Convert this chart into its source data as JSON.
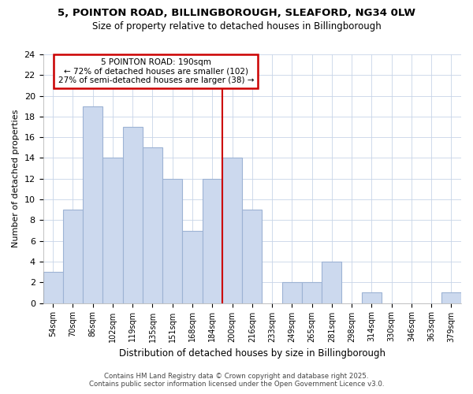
{
  "title1": "5, POINTON ROAD, BILLINGBOROUGH, SLEAFORD, NG34 0LW",
  "title2": "Size of property relative to detached houses in Billingborough",
  "xlabel": "Distribution of detached houses by size in Billingborough",
  "ylabel": "Number of detached properties",
  "categories": [
    "54sqm",
    "70sqm",
    "86sqm",
    "102sqm",
    "119sqm",
    "135sqm",
    "151sqm",
    "168sqm",
    "184sqm",
    "200sqm",
    "216sqm",
    "233sqm",
    "249sqm",
    "265sqm",
    "281sqm",
    "298sqm",
    "314sqm",
    "330sqm",
    "346sqm",
    "363sqm",
    "379sqm"
  ],
  "values": [
    3,
    9,
    19,
    14,
    17,
    15,
    12,
    7,
    12,
    14,
    9,
    0,
    2,
    2,
    4,
    0,
    1,
    0,
    0,
    0,
    1
  ],
  "bar_color": "#ccd9ee",
  "bar_edge_color": "#9db3d4",
  "vline_x": 8.5,
  "annotation_title": "5 POINTON ROAD: 190sqm",
  "annotation_line1": "← 72% of detached houses are smaller (102)",
  "annotation_line2": "27% of semi-detached houses are larger (38) →",
  "annotation_box_color": "#ffffff",
  "annotation_box_edge": "#cc0000",
  "vline_color": "#cc0000",
  "ylim": [
    0,
    24
  ],
  "yticks": [
    0,
    2,
    4,
    6,
    8,
    10,
    12,
    14,
    16,
    18,
    20,
    22,
    24
  ],
  "footer1": "Contains HM Land Registry data © Crown copyright and database right 2025.",
  "footer2": "Contains public sector information licensed under the Open Government Licence v3.0.",
  "plot_bg_color": "#ffffff",
  "fig_bg_color": "#ffffff",
  "grid_color": "#c8d4e8"
}
